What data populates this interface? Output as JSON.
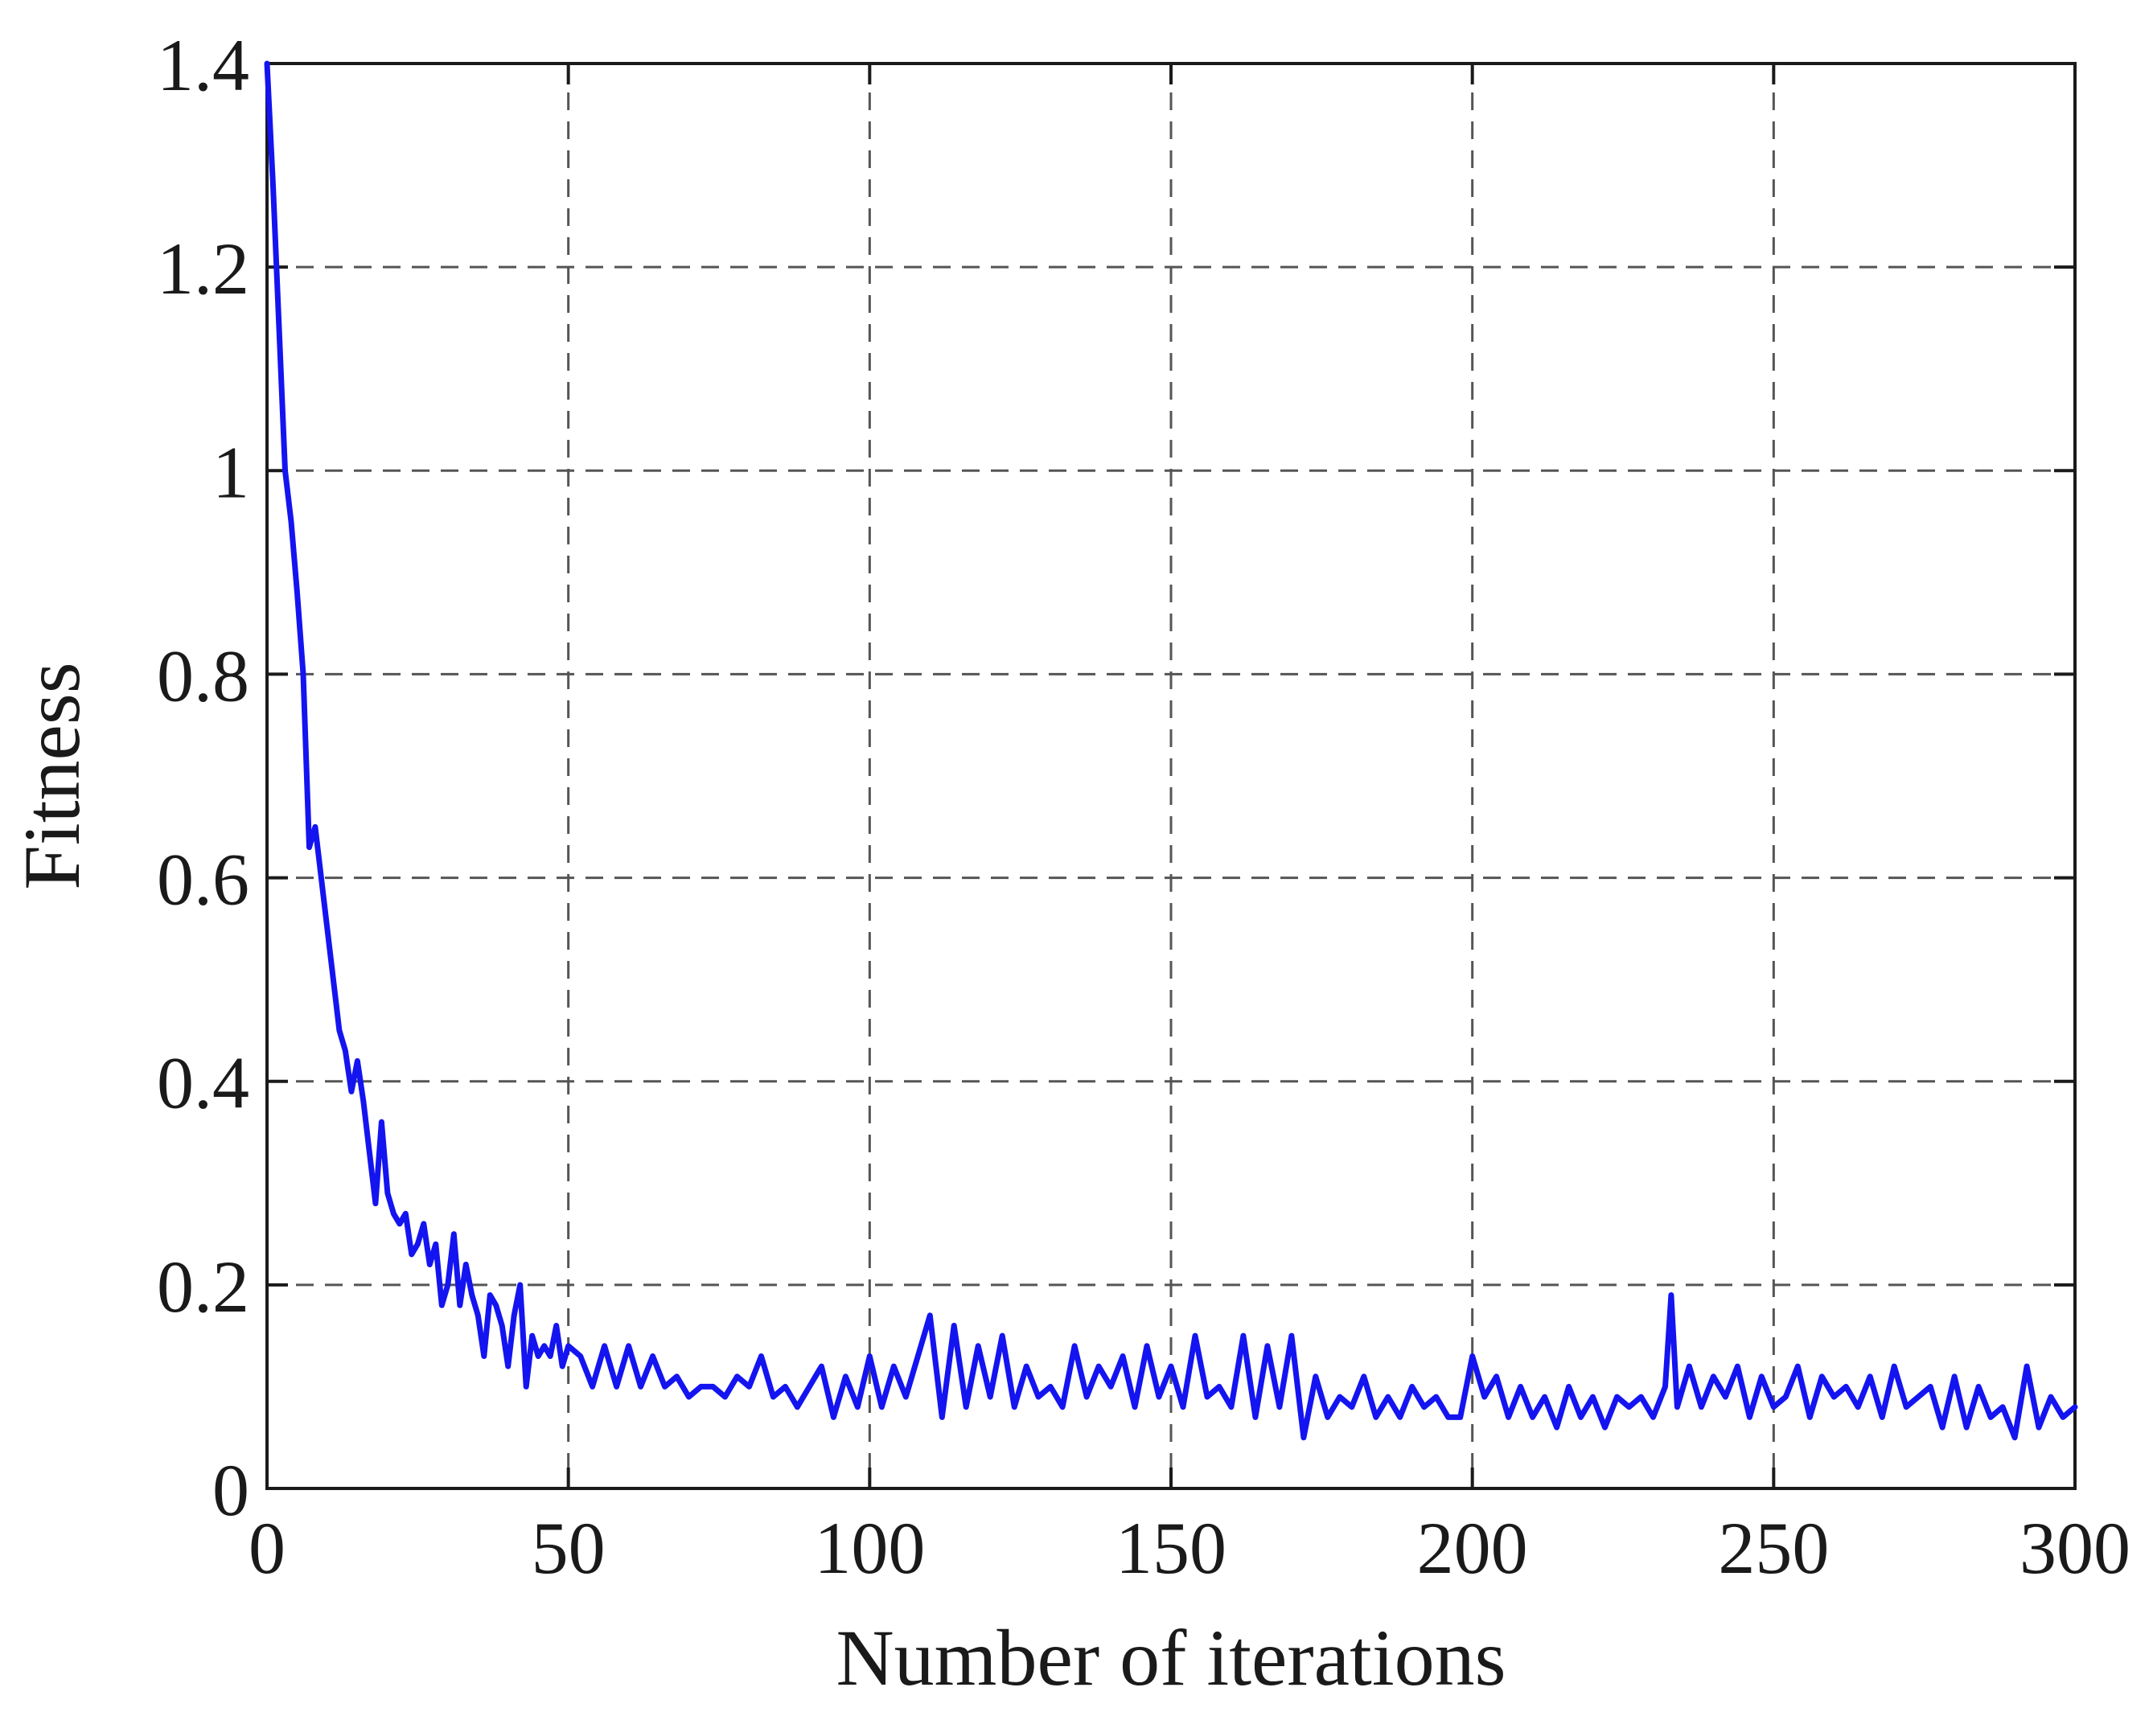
{
  "chart_data": {
    "type": "line",
    "title": "",
    "xlabel": "Number of iterations",
    "ylabel": "Fitness",
    "xlim": [
      0,
      300
    ],
    "ylim": [
      0,
      1.4
    ],
    "xticks": [
      "0",
      "50",
      "100",
      "150",
      "200",
      "250",
      "300"
    ],
    "yticks": [
      "0",
      "0.2",
      "0.4",
      "0.6",
      "0.8",
      "1",
      "1.2",
      "1.4"
    ],
    "grid": true,
    "legend": "none",
    "line_color": "#1414f0",
    "series": [
      {
        "x": [
          0,
          1,
          2,
          3,
          4,
          5,
          6,
          7,
          8,
          9,
          10,
          11,
          12,
          13,
          14,
          15,
          16,
          17,
          18,
          19,
          20,
          21,
          22,
          23,
          24,
          25,
          26,
          27,
          28,
          29,
          30,
          31,
          32,
          33,
          34,
          35,
          36,
          37,
          38,
          39,
          40,
          41,
          42,
          43,
          44,
          45,
          46,
          47,
          48,
          49,
          50,
          52,
          54,
          56,
          58,
          60,
          62,
          64,
          66,
          68,
          70,
          72,
          74,
          76,
          78,
          80,
          82,
          84,
          86,
          88,
          90,
          92,
          94,
          96,
          98,
          100,
          102,
          104,
          106,
          108,
          110,
          112,
          114,
          116,
          118,
          120,
          122,
          124,
          126,
          128,
          130,
          132,
          134,
          136,
          138,
          140,
          142,
          144,
          146,
          148,
          150,
          152,
          154,
          156,
          158,
          160,
          162,
          164,
          166,
          168,
          170,
          172,
          174,
          176,
          178,
          180,
          182,
          184,
          186,
          188,
          190,
          192,
          194,
          196,
          198,
          200,
          202,
          204,
          206,
          208,
          210,
          212,
          214,
          216,
          218,
          220,
          222,
          224,
          226,
          228,
          230,
          232,
          233,
          234,
          236,
          238,
          240,
          242,
          244,
          246,
          248,
          250,
          252,
          254,
          256,
          258,
          260,
          262,
          264,
          266,
          268,
          270,
          272,
          274,
          276,
          278,
          280,
          282,
          284,
          286,
          288,
          290,
          292,
          294,
          296,
          298,
          300
        ],
        "values": [
          1.4,
          1.28,
          1.14,
          1.0,
          0.95,
          0.88,
          0.8,
          0.63,
          0.65,
          0.6,
          0.55,
          0.5,
          0.45,
          0.43,
          0.39,
          0.42,
          0.38,
          0.33,
          0.28,
          0.36,
          0.29,
          0.27,
          0.26,
          0.27,
          0.23,
          0.24,
          0.26,
          0.22,
          0.24,
          0.18,
          0.2,
          0.25,
          0.18,
          0.22,
          0.19,
          0.17,
          0.13,
          0.19,
          0.18,
          0.16,
          0.12,
          0.17,
          0.2,
          0.1,
          0.15,
          0.13,
          0.14,
          0.13,
          0.16,
          0.12,
          0.14,
          0.13,
          0.1,
          0.14,
          0.1,
          0.14,
          0.1,
          0.13,
          0.1,
          0.11,
          0.09,
          0.1,
          0.1,
          0.09,
          0.11,
          0.1,
          0.13,
          0.09,
          0.1,
          0.08,
          0.1,
          0.12,
          0.07,
          0.11,
          0.08,
          0.13,
          0.08,
          0.12,
          0.09,
          0.13,
          0.17,
          0.07,
          0.16,
          0.08,
          0.14,
          0.09,
          0.15,
          0.08,
          0.12,
          0.09,
          0.1,
          0.08,
          0.14,
          0.09,
          0.12,
          0.1,
          0.13,
          0.08,
          0.14,
          0.09,
          0.12,
          0.08,
          0.15,
          0.09,
          0.1,
          0.08,
          0.15,
          0.07,
          0.14,
          0.08,
          0.15,
          0.05,
          0.11,
          0.07,
          0.09,
          0.08,
          0.11,
          0.07,
          0.09,
          0.07,
          0.1,
          0.08,
          0.09,
          0.07,
          0.07,
          0.13,
          0.09,
          0.11,
          0.07,
          0.1,
          0.07,
          0.09,
          0.06,
          0.1,
          0.07,
          0.09,
          0.06,
          0.09,
          0.08,
          0.09,
          0.07,
          0.1,
          0.19,
          0.08,
          0.12,
          0.08,
          0.11,
          0.09,
          0.12,
          0.07,
          0.11,
          0.08,
          0.09,
          0.12,
          0.07,
          0.11,
          0.09,
          0.1,
          0.08,
          0.11,
          0.07,
          0.12,
          0.08,
          0.09,
          0.1,
          0.06,
          0.11,
          0.06,
          0.1,
          0.07,
          0.08,
          0.05,
          0.12,
          0.06,
          0.09,
          0.07,
          0.08
        ]
      }
    ]
  }
}
